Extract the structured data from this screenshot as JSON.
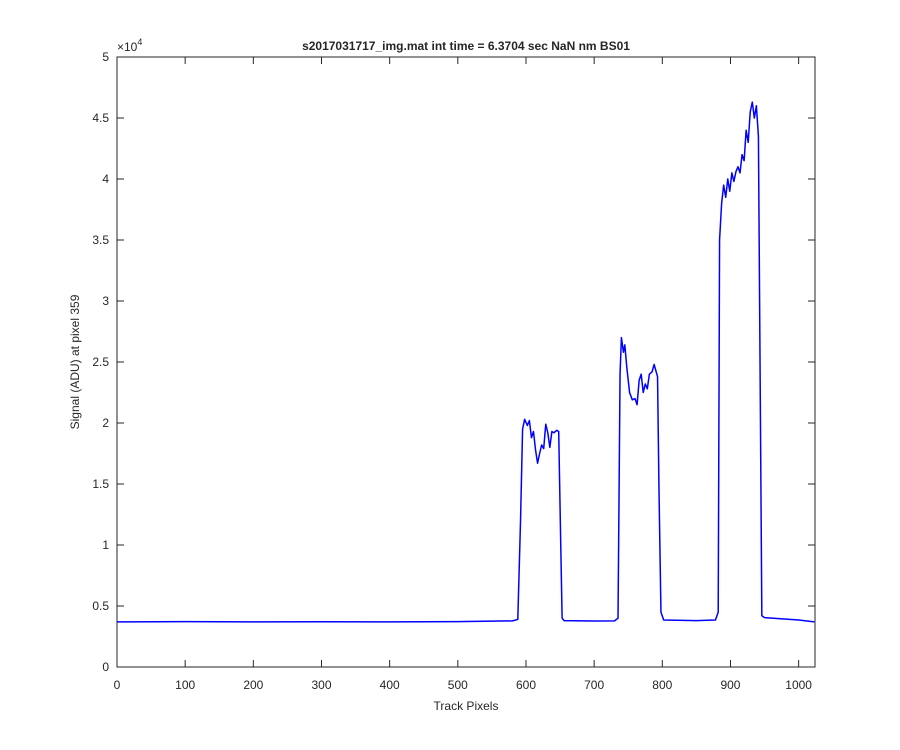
{
  "chart_data": {
    "type": "line",
    "title": "s2017031717_img.mat int time = 6.3704 sec  NaN nm BS01",
    "x_label": "Track Pixels",
    "y_label": "Signal (ADU) at pixel 359",
    "y_exponent_base": "×10",
    "y_exponent_power": "4",
    "xlim": [
      0,
      1024
    ],
    "ylim": [
      0,
      50000
    ],
    "xticks": [
      0,
      100,
      200,
      300,
      400,
      500,
      600,
      700,
      800,
      900,
      1000
    ],
    "yticks": [
      {
        "value": 0,
        "label": "0"
      },
      {
        "value": 5000,
        "label": "0.5"
      },
      {
        "value": 10000,
        "label": "1"
      },
      {
        "value": 15000,
        "label": "1.5"
      },
      {
        "value": 20000,
        "label": "2"
      },
      {
        "value": 25000,
        "label": "2.5"
      },
      {
        "value": 30000,
        "label": "3"
      },
      {
        "value": 35000,
        "label": "3.5"
      },
      {
        "value": 40000,
        "label": "4"
      },
      {
        "value": 45000,
        "label": "4.5"
      },
      {
        "value": 50000,
        "label": "5"
      }
    ],
    "grid": false,
    "series": [
      {
        "color": "#0000ff",
        "x": [
          0,
          100,
          200,
          300,
          400,
          500,
          580,
          588,
          592,
          595,
          598,
          602,
          605,
          608,
          611,
          614,
          617,
          620,
          623,
          626,
          629,
          632,
          635,
          638,
          641,
          645,
          648,
          651,
          653,
          656,
          700,
          730,
          735,
          738,
          740,
          743,
          745,
          748,
          752,
          756,
          760,
          763,
          766,
          769,
          772,
          775,
          778,
          781,
          785,
          788,
          791,
          793,
          795,
          798,
          802,
          850,
          878,
          882,
          884,
          887,
          890,
          893,
          896,
          899,
          902,
          905,
          908,
          911,
          914,
          917,
          920,
          923,
          926,
          929,
          932,
          935,
          938,
          941,
          944,
          946,
          950,
          1000,
          1023
        ],
        "values": [
          3700,
          3720,
          3700,
          3710,
          3700,
          3720,
          3780,
          3900,
          12000,
          19500,
          20300,
          19800,
          20200,
          18800,
          19300,
          17800,
          16700,
          17500,
          18200,
          17900,
          19900,
          19200,
          18000,
          19300,
          19200,
          19400,
          19300,
          10000,
          4000,
          3800,
          3770,
          3780,
          4000,
          24000,
          27000,
          25800,
          26400,
          24500,
          22500,
          21900,
          22000,
          21500,
          23500,
          24000,
          22500,
          23200,
          22800,
          24000,
          24200,
          24800,
          24200,
          23800,
          15000,
          4500,
          3850,
          3800,
          3850,
          4500,
          35000,
          38000,
          39500,
          38500,
          40000,
          39000,
          40500,
          39800,
          40600,
          41000,
          40500,
          42000,
          41500,
          44000,
          43000,
          45500,
          46300,
          45000,
          46000,
          43500,
          20000,
          4200,
          4050,
          3850,
          3700
        ]
      }
    ]
  }
}
